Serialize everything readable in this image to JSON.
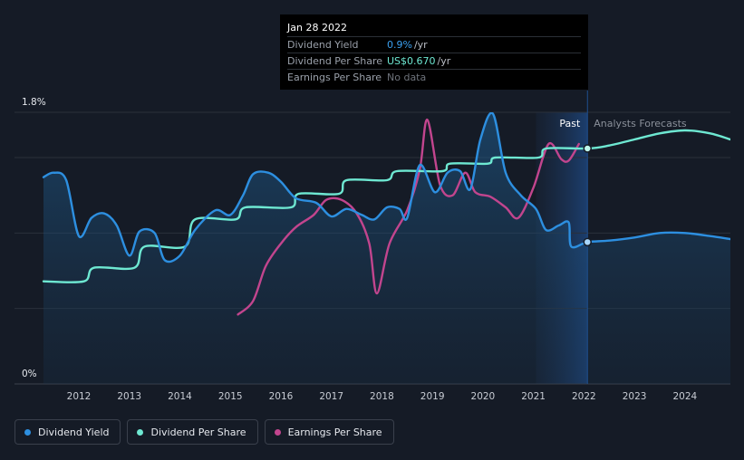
{
  "tooltip": {
    "date": "Jan 28 2022",
    "rows": [
      {
        "label": "Dividend Yield",
        "value": "0.9%",
        "unit": "/yr"
      },
      {
        "label": "Dividend Per Share",
        "value": "US$0.670",
        "unit": "/yr"
      },
      {
        "label": "Earnings Per Share",
        "value": "No data",
        "unit": ""
      }
    ]
  },
  "legend": [
    {
      "label": "Dividend Yield",
      "color": "#2d8fe0"
    },
    {
      "label": "Dividend Per Share",
      "color": "#6ee8d2"
    },
    {
      "label": "Earnings Per Share",
      "color": "#c2458e"
    }
  ],
  "chart_data": {
    "type": "line",
    "y_axis": {
      "min": 0,
      "max": 1.8,
      "tick_labels": [
        "0%",
        "1.8%"
      ]
    },
    "x_axis": {
      "min": 2011.3,
      "max": 2024.9,
      "tick_labels": [
        "2012",
        "2013",
        "2014",
        "2015",
        "2016",
        "2017",
        "2018",
        "2019",
        "2020",
        "2021",
        "2022",
        "2023",
        "2024"
      ]
    },
    "regions": {
      "past_label": "Past",
      "forecast_label": "Analysts Forecasts",
      "past_start": 2021.05,
      "present": 2022.07
    },
    "series": [
      {
        "name": "Dividend Yield",
        "color": "#2d8fe0",
        "points": [
          [
            2011.3,
            1.37
          ],
          [
            2011.5,
            1.4
          ],
          [
            2011.75,
            1.35
          ],
          [
            2012.0,
            0.98
          ],
          [
            2012.25,
            1.1
          ],
          [
            2012.5,
            1.13
          ],
          [
            2012.75,
            1.05
          ],
          [
            2013.0,
            0.85
          ],
          [
            2013.2,
            1.01
          ],
          [
            2013.5,
            1.0
          ],
          [
            2013.7,
            0.82
          ],
          [
            2014.0,
            0.85
          ],
          [
            2014.3,
            1.02
          ],
          [
            2014.7,
            1.15
          ],
          [
            2015.0,
            1.12
          ],
          [
            2015.25,
            1.25
          ],
          [
            2015.45,
            1.39
          ],
          [
            2015.75,
            1.4
          ],
          [
            2016.0,
            1.34
          ],
          [
            2016.3,
            1.23
          ],
          [
            2016.7,
            1.2
          ],
          [
            2017.0,
            1.11
          ],
          [
            2017.3,
            1.16
          ],
          [
            2017.6,
            1.12
          ],
          [
            2017.85,
            1.09
          ],
          [
            2018.1,
            1.17
          ],
          [
            2018.35,
            1.16
          ],
          [
            2018.5,
            1.1
          ],
          [
            2018.75,
            1.45
          ],
          [
            2019.05,
            1.27
          ],
          [
            2019.3,
            1.4
          ],
          [
            2019.55,
            1.41
          ],
          [
            2019.75,
            1.29
          ],
          [
            2019.95,
            1.62
          ],
          [
            2020.2,
            1.79
          ],
          [
            2020.45,
            1.4
          ],
          [
            2020.75,
            1.25
          ],
          [
            2021.05,
            1.16
          ],
          [
            2021.25,
            1.02
          ],
          [
            2021.5,
            1.05
          ],
          [
            2021.7,
            1.07
          ],
          [
            2021.75,
            0.91
          ],
          [
            2022.07,
            0.94
          ],
          [
            2022.5,
            0.95
          ],
          [
            2023.0,
            0.97
          ],
          [
            2023.5,
            1.0
          ],
          [
            2024.0,
            1.0
          ],
          [
            2024.5,
            0.98
          ],
          [
            2024.9,
            0.96
          ]
        ]
      },
      {
        "name": "Dividend Per Share",
        "color": "#6ee8d2",
        "points": [
          [
            2011.3,
            0.68
          ],
          [
            2012.1,
            0.68
          ],
          [
            2012.3,
            0.77
          ],
          [
            2013.1,
            0.77
          ],
          [
            2013.3,
            0.91
          ],
          [
            2014.1,
            0.91
          ],
          [
            2014.3,
            1.09
          ],
          [
            2015.1,
            1.09
          ],
          [
            2015.3,
            1.17
          ],
          [
            2016.2,
            1.17
          ],
          [
            2016.35,
            1.26
          ],
          [
            2017.15,
            1.26
          ],
          [
            2017.3,
            1.35
          ],
          [
            2018.1,
            1.35
          ],
          [
            2018.3,
            1.41
          ],
          [
            2019.2,
            1.41
          ],
          [
            2019.35,
            1.46
          ],
          [
            2020.1,
            1.46
          ],
          [
            2020.25,
            1.5
          ],
          [
            2021.1,
            1.5
          ],
          [
            2021.25,
            1.56
          ],
          [
            2022.07,
            1.56
          ],
          [
            2022.5,
            1.58
          ],
          [
            2023.0,
            1.62
          ],
          [
            2023.5,
            1.66
          ],
          [
            2024.0,
            1.68
          ],
          [
            2024.5,
            1.66
          ],
          [
            2024.9,
            1.62
          ]
        ]
      },
      {
        "name": "Earnings Per Share",
        "color": "#c2458e",
        "points": [
          [
            2015.15,
            0.46
          ],
          [
            2015.45,
            0.55
          ],
          [
            2015.7,
            0.78
          ],
          [
            2016.0,
            0.93
          ],
          [
            2016.3,
            1.04
          ],
          [
            2016.65,
            1.12
          ],
          [
            2016.9,
            1.22
          ],
          [
            2017.2,
            1.22
          ],
          [
            2017.5,
            1.13
          ],
          [
            2017.75,
            0.93
          ],
          [
            2017.9,
            0.6
          ],
          [
            2018.15,
            0.93
          ],
          [
            2018.5,
            1.15
          ],
          [
            2018.75,
            1.42
          ],
          [
            2018.9,
            1.75
          ],
          [
            2019.15,
            1.32
          ],
          [
            2019.4,
            1.25
          ],
          [
            2019.65,
            1.4
          ],
          [
            2019.85,
            1.27
          ],
          [
            2020.15,
            1.24
          ],
          [
            2020.45,
            1.17
          ],
          [
            2020.7,
            1.1
          ],
          [
            2021.0,
            1.3
          ],
          [
            2021.3,
            1.59
          ],
          [
            2021.55,
            1.49
          ],
          [
            2021.7,
            1.48
          ],
          [
            2021.9,
            1.59
          ]
        ]
      }
    ],
    "markers": [
      {
        "series": "Dividend Per Share",
        "x": 2022.07,
        "y": 1.56
      },
      {
        "series": "Dividend Yield",
        "x": 2022.07,
        "y": 0.94
      }
    ]
  }
}
